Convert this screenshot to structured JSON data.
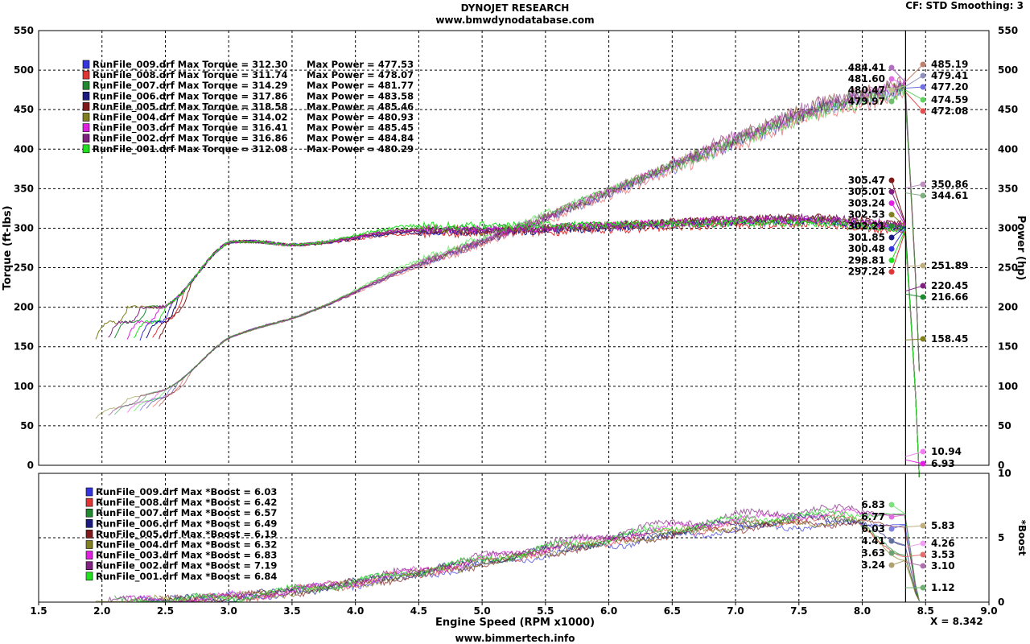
{
  "header": {
    "title": "DYNOJET RESEARCH",
    "subtitle": "www.bmwdynodatabase.com",
    "settings": "CF: STD  Smoothing: 3"
  },
  "footer": {
    "x_readout": "X = 8.342",
    "website": "www.bimmertech.info"
  },
  "chart_data": {
    "type": "line",
    "xlabel": "Engine Speed (RPM x1000)",
    "xlim": [
      1.5,
      9.0
    ],
    "x_ticks": [
      "1.5",
      "2.0",
      "2.5",
      "3.0",
      "3.5",
      "4.0",
      "4.5",
      "5.0",
      "5.5",
      "6.0",
      "6.5",
      "7.0",
      "7.5",
      "8.0",
      "8.5",
      "9.0"
    ],
    "cursor_x": 8.342,
    "top_panel": {
      "ylabel_left": "Torque (ft-lbs)",
      "ylabel_right": "Power (hp)",
      "ylim": [
        0,
        550
      ],
      "y_ticks": [
        "0",
        "50",
        "100",
        "150",
        "200",
        "250",
        "300",
        "350",
        "400",
        "450",
        "500",
        "550"
      ],
      "legend": [
        {
          "label": "RunFile_009.drf Max Torque = 312.30",
          "power": "Max Power = 477.53",
          "color": "#3535e0"
        },
        {
          "label": "RunFile_008.drf Max Torque = 311.74",
          "power": "Max Power = 478.07",
          "color": "#e03535"
        },
        {
          "label": "RunFile_007.drf Max Torque = 314.29",
          "power": "Max Power = 481.77",
          "color": "#1f8a2f"
        },
        {
          "label": "RunFile_006.drf Max Torque = 317.86",
          "power": "Max Power = 483.58",
          "color": "#1a1a80"
        },
        {
          "label": "RunFile_005.drf Max Torque = 318.58",
          "power": "Max Power = 485.46",
          "color": "#801a1a"
        },
        {
          "label": "RunFile_004.drf Max Torque = 314.02",
          "power": "Max Power = 480.93",
          "color": "#808020"
        },
        {
          "label": "RunFile_003.drf Max Torque = 316.41",
          "power": "Max Power = 485.45",
          "color": "#e020e0"
        },
        {
          "label": "RunFile_002.drf Max Torque = 316.86",
          "power": "Max Power = 484.84",
          "color": "#802080"
        },
        {
          "label": "RunFile_001.drf Max Torque = 312.08",
          "power": "Max Power = 480.29",
          "color": "#20e020"
        }
      ],
      "cursor_values_left": [
        {
          "value": "484.41",
          "color": "#b070c0"
        },
        {
          "value": "481.60",
          "color": "#e070e0"
        },
        {
          "value": "480.47",
          "color": "#c0c090"
        },
        {
          "value": "479.97",
          "color": "#70c070"
        },
        {
          "value": "305.47",
          "color": "#801a1a"
        },
        {
          "value": "305.01",
          "color": "#802080"
        },
        {
          "value": "303.24",
          "color": "#e020e0"
        },
        {
          "value": "302.53",
          "color": "#808020"
        },
        {
          "value": "302.21",
          "color": "#1f8a2f"
        },
        {
          "value": "301.85",
          "color": "#1a1a80"
        },
        {
          "value": "300.48",
          "color": "#3535e0"
        },
        {
          "value": "298.81",
          "color": "#20e020"
        },
        {
          "value": "297.24",
          "color": "#e03535"
        }
      ],
      "cursor_values_right": [
        {
          "value": "485.19",
          "color": "#c08070"
        },
        {
          "value": "479.41",
          "color": "#9090c0"
        },
        {
          "value": "477.20",
          "color": "#7070e0"
        },
        {
          "value": "474.59",
          "color": "#60d060"
        },
        {
          "value": "472.08",
          "color": "#e05050"
        },
        {
          "value": "350.86",
          "color": "#c090c0"
        },
        {
          "value": "344.61",
          "color": "#80b080"
        },
        {
          "value": "251.89",
          "color": "#c0b080"
        },
        {
          "value": "220.45",
          "color": "#802080"
        },
        {
          "value": "216.66",
          "color": "#1f8a2f"
        },
        {
          "value": "158.45",
          "color": "#808020"
        },
        {
          "value": "10.94",
          "color": "#f080f0"
        },
        {
          "value": "6.93",
          "color": "#e020e0"
        }
      ]
    },
    "bottom_panel": {
      "ylabel_right": "*Boost",
      "ylim": [
        0,
        10
      ],
      "y_ticks": [
        "0",
        "5",
        "10"
      ],
      "legend": [
        {
          "label": "RunFile_009.drf Max *Boost = 6.03",
          "color": "#3535e0"
        },
        {
          "label": "RunFile_008.drf Max *Boost = 6.42",
          "color": "#e03535"
        },
        {
          "label": "RunFile_007.drf Max *Boost = 6.57",
          "color": "#1f8a2f"
        },
        {
          "label": "RunFile_006.drf Max *Boost = 6.49",
          "color": "#1a1a80"
        },
        {
          "label": "RunFile_005.drf Max *Boost = 6.19",
          "color": "#801a1a"
        },
        {
          "label": "RunFile_004.drf Max *Boost = 6.32",
          "color": "#808020"
        },
        {
          "label": "RunFile_003.drf Max *Boost = 6.83",
          "color": "#e020e0"
        },
        {
          "label": "RunFile_002.drf Max *Boost = 7.19",
          "color": "#802080"
        },
        {
          "label": "RunFile_001.drf Max *Boost = 6.84",
          "color": "#20e020"
        }
      ],
      "cursor_values_left": [
        {
          "value": "6.83",
          "color": "#80e080"
        },
        {
          "value": "6.77",
          "color": "#e070e0"
        },
        {
          "value": "6.03",
          "color": "#8080e0"
        },
        {
          "value": "4.41",
          "color": "#6070a0"
        },
        {
          "value": "3.63",
          "color": "#70a070"
        },
        {
          "value": "3.24",
          "color": "#b0a070"
        }
      ],
      "cursor_values_right": [
        {
          "value": "5.83",
          "color": "#c0b080"
        },
        {
          "value": "4.26",
          "color": "#f0a0f0"
        },
        {
          "value": "3.53",
          "color": "#e07070"
        },
        {
          "value": "3.10",
          "color": "#b070b0"
        },
        {
          "value": "1.12",
          "color": "#70b070"
        }
      ]
    },
    "series": [
      {
        "name": "RunFile_009.drf",
        "color": "#3535e0",
        "tq_start_rpm": 2.3,
        "hp_peak": 477.53,
        "tq_peak": 312.3,
        "boost_peak": 6.03,
        "tq_plateau": 296,
        "tq_cursor": 300.48,
        "hp_cursor": 477.2,
        "boost_cursor": 6.03
      },
      {
        "name": "RunFile_008.drf",
        "color": "#e03535",
        "tq_start_rpm": 2.4,
        "hp_peak": 478.07,
        "tq_peak": 311.74,
        "boost_peak": 6.42,
        "tq_plateau": 293,
        "tq_cursor": 297.24,
        "hp_cursor": 472.08,
        "boost_cursor": 3.53
      },
      {
        "name": "RunFile_007.drf",
        "color": "#1f8a2f",
        "tq_start_rpm": 2.1,
        "hp_peak": 481.77,
        "tq_peak": 314.29,
        "boost_peak": 6.57,
        "tq_plateau": 300,
        "tq_cursor": 302.21,
        "hp_cursor": 479.41,
        "boost_cursor": 3.63
      },
      {
        "name": "RunFile_006.drf",
        "color": "#1a1a80",
        "tq_start_rpm": 2.35,
        "hp_peak": 483.58,
        "tq_peak": 317.86,
        "boost_peak": 6.49,
        "tq_plateau": 295,
        "tq_cursor": 301.85,
        "hp_cursor": 480.47,
        "boost_cursor": 4.41
      },
      {
        "name": "RunFile_005.drf",
        "color": "#801a1a",
        "tq_start_rpm": 2.45,
        "hp_peak": 485.46,
        "tq_peak": 318.58,
        "boost_peak": 6.19,
        "tq_plateau": 297,
        "tq_cursor": 305.47,
        "hp_cursor": 485.19,
        "boost_cursor": 5.83
      },
      {
        "name": "RunFile_004.drf",
        "color": "#808020",
        "tq_start_rpm": 1.95,
        "hp_peak": 480.93,
        "tq_peak": 314.02,
        "boost_peak": 6.32,
        "tq_plateau": 299,
        "tq_cursor": 302.53,
        "hp_cursor": 480.47,
        "boost_cursor": 3.24
      },
      {
        "name": "RunFile_003.drf",
        "color": "#e020e0",
        "tq_start_rpm": 2.2,
        "hp_peak": 485.45,
        "tq_peak": 316.41,
        "boost_peak": 6.83,
        "tq_plateau": 298,
        "tq_cursor": 303.24,
        "hp_cursor": 481.6,
        "boost_cursor": 6.83
      },
      {
        "name": "RunFile_002.drf",
        "color": "#802080",
        "tq_start_rpm": 2.05,
        "hp_peak": 484.84,
        "tq_peak": 316.86,
        "boost_peak": 7.19,
        "tq_plateau": 297,
        "tq_cursor": 305.01,
        "hp_cursor": 484.41,
        "boost_cursor": 6.77
      },
      {
        "name": "RunFile_001.drf",
        "color": "#20e020",
        "tq_start_rpm": 2.25,
        "hp_peak": 480.29,
        "tq_peak": 312.08,
        "boost_peak": 6.84,
        "tq_plateau": 303,
        "tq_cursor": 298.81,
        "hp_cursor": 479.97,
        "boost_cursor": 6.83
      }
    ]
  }
}
